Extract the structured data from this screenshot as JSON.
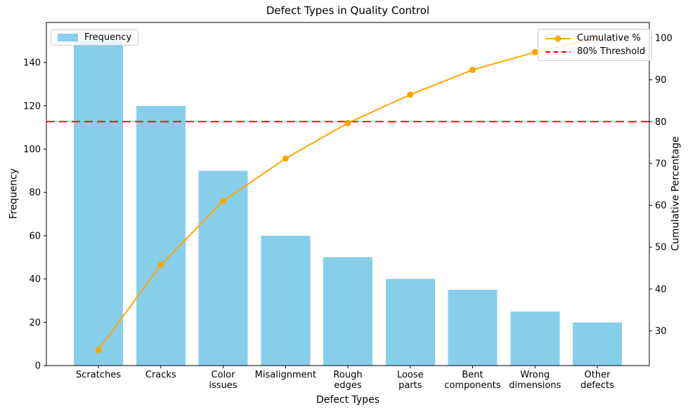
{
  "title": "Defect Types in Quality Control",
  "chart_data": {
    "type": "bar",
    "subtype": "pareto",
    "title": "Defect Types in Quality Control",
    "categories": [
      "Scratches",
      "Cracks",
      "Color\nissues",
      "Misalignment",
      "Rough\nedges",
      "Loose\nparts",
      "Bent\ncomponents",
      "Wrong\ndimensions",
      "Other\ndefects"
    ],
    "series": [
      {
        "name": "Frequency",
        "type": "bar",
        "axis": "left",
        "color": "#87CEEB",
        "values": [
          150,
          120,
          90,
          60,
          50,
          40,
          35,
          25,
          20
        ]
      },
      {
        "name": "Cumulative %",
        "type": "line",
        "axis": "right",
        "color": "#FFA500",
        "marker": "circle",
        "values": [
          25.42,
          45.76,
          61.02,
          71.19,
          79.66,
          86.44,
          92.37,
          96.61,
          100.0
        ]
      }
    ],
    "threshold": {
      "label": "80% Threshold",
      "value": 80,
      "axis": "right",
      "color": "#FF0000",
      "linestyle": "dashed"
    },
    "xlabel": "Defect Types",
    "ylabel": "Frequency",
    "ylabel_right": "Cumulative Percentage",
    "yaxis_left": {
      "ticks": [
        0,
        20,
        40,
        60,
        80,
        100,
        120,
        140
      ],
      "lim": [
        0,
        158.5
      ]
    },
    "yaxis_right": {
      "ticks": [
        30,
        40,
        50,
        60,
        70,
        80,
        90,
        100
      ],
      "lim": [
        21.7,
        103.7
      ]
    },
    "grid": false,
    "legend_positions": [
      "upper left",
      "upper right"
    ]
  }
}
